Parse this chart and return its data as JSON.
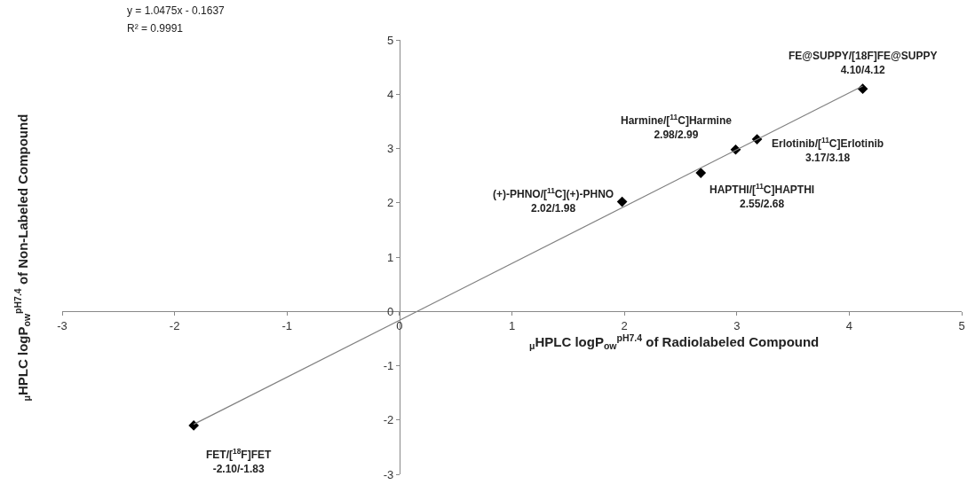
{
  "chart_data": {
    "type": "scatter",
    "xlabel": "$_{μ}$HPLC logP$_{ow}$$^{pH7.4}$ of Radiolabeled Compound",
    "ylabel": "$_{μ}$HPLC logP$_{ow}$$^{pH7.4}$ of Non-Labeled Compound",
    "x": [
      -1.83,
      1.98,
      2.68,
      2.99,
      3.18,
      4.12
    ],
    "series": [
      {
        "color": "#000000",
        "values": [
          -2.1,
          2.02,
          2.55,
          2.98,
          3.17,
          4.1
        ],
        "marker": "diamond"
      },
      {
        "type": "line",
        "color": "#808080",
        "x": [
          -1.83,
          4.12
        ],
        "values": [
          -2.08,
          4.15
        ],
        "marker": "none"
      }
    ],
    "xlim": [
      -3,
      5
    ],
    "ylim": [
      -3,
      5
    ],
    "xticks": [
      -3,
      -2,
      -1,
      0,
      1,
      2,
      3,
      4,
      5
    ],
    "yticks": [
      -3,
      -2,
      -1,
      0,
      1,
      2,
      3,
      4,
      5
    ],
    "annotations": [
      "y = 1.0475x - 0.1637",
      "R² = 0.9991",
      {
        "text": "FET/[$^{18}$F]FET\n-2.10/-1.83",
        "x": -1.83,
        "y": -2.1
      },
      {
        "text": "(+)-PHNO/[$^{11}$C](+)-PHNO\n2.02/1.98",
        "x": 1.98,
        "y": 2.02
      },
      {
        "text": "HAPTHI/[$^{11}$C]HAPTHI\n2.55/2.68",
        "x": 2.68,
        "y": 2.55
      },
      {
        "text": "Harmine/[$^{11}$C]Harmine\n2.98/2.99",
        "x": 2.99,
        "y": 2.98
      },
      {
        "text": "Erlotinib/[$^{11}$C]Erlotinib\n3.17/3.18",
        "x": 3.18,
        "y": 3.17
      },
      {
        "text": "FE@SUPPY/[18F]FE@SUPPY\n4.10/4.12",
        "x": 4.12,
        "y": 4.1
      }
    ]
  }
}
